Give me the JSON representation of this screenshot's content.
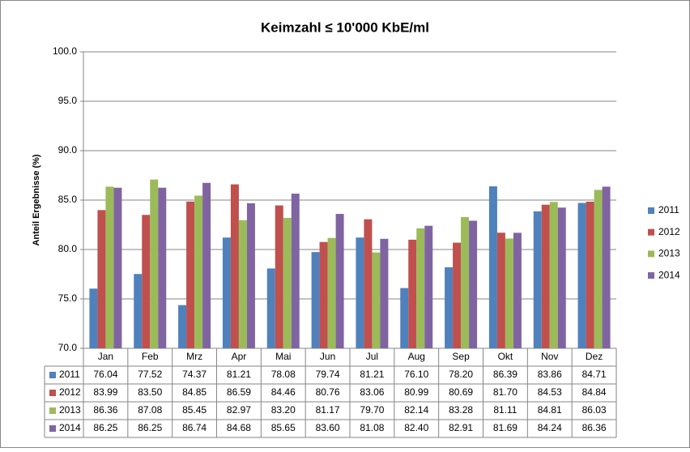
{
  "chart_data": {
    "type": "bar",
    "title": "Keimzahl ≤ 10'000 KbE/ml",
    "ylabel": "Anteil Ergebnisse (%)",
    "categories": [
      "Jan",
      "Feb",
      "Mrz",
      "Apr",
      "Mai",
      "Jun",
      "Jul",
      "Aug",
      "Sep",
      "Okt",
      "Nov",
      "Dez"
    ],
    "series": [
      {
        "name": "2011",
        "color": "#4f81bd",
        "values": [
          76.04,
          77.52,
          74.37,
          81.21,
          78.08,
          79.74,
          81.21,
          76.1,
          78.2,
          86.39,
          83.86,
          84.71
        ],
        "value_labels": [
          "76.04",
          "77.52",
          "74.37",
          "81.21",
          "78.08",
          "79.74",
          "81.21",
          "76.10",
          "78.20",
          "86.39",
          "83.86",
          "84.71"
        ]
      },
      {
        "name": "2012",
        "color": "#c0504d",
        "values": [
          83.99,
          83.5,
          84.85,
          86.59,
          84.46,
          80.76,
          83.06,
          80.99,
          80.69,
          81.7,
          84.53,
          84.84
        ],
        "value_labels": [
          "83.99",
          "83.50",
          "84.85",
          "86.59",
          "84.46",
          "80.76",
          "83.06",
          "80.99",
          "80.69",
          "81.70",
          "84.53",
          "84.84"
        ]
      },
      {
        "name": "2013",
        "color": "#9bbb59",
        "values": [
          86.36,
          87.08,
          85.45,
          82.97,
          83.2,
          81.17,
          79.7,
          82.14,
          83.28,
          81.11,
          84.81,
          86.03
        ],
        "value_labels": [
          "86.36",
          "87.08",
          "85.45",
          "82.97",
          "83.20",
          "81.17",
          "79.70",
          "82.14",
          "83.28",
          "81.11",
          "84.81",
          "86.03"
        ]
      },
      {
        "name": "2014",
        "color": "#8064a2",
        "values": [
          86.25,
          86.25,
          86.74,
          84.68,
          85.65,
          83.6,
          81.08,
          82.4,
          82.91,
          81.69,
          84.24,
          86.36
        ],
        "value_labels": [
          "86.25",
          "86.25",
          "86.74",
          "84.68",
          "85.65",
          "83.60",
          "81.08",
          "82.40",
          "82.91",
          "81.69",
          "84.24",
          "86.36"
        ]
      }
    ],
    "ylim": [
      70,
      100
    ],
    "yticks": [
      {
        "value": 70,
        "label": "70.0"
      },
      {
        "value": 75,
        "label": "75.0"
      },
      {
        "value": 80,
        "label": "80.0"
      },
      {
        "value": 85,
        "label": "85.0"
      },
      {
        "value": 90,
        "label": "90.0"
      },
      {
        "value": 95,
        "label": "95.0"
      },
      {
        "value": 100,
        "label": "100.0"
      }
    ],
    "grid": true,
    "legend": "right"
  }
}
